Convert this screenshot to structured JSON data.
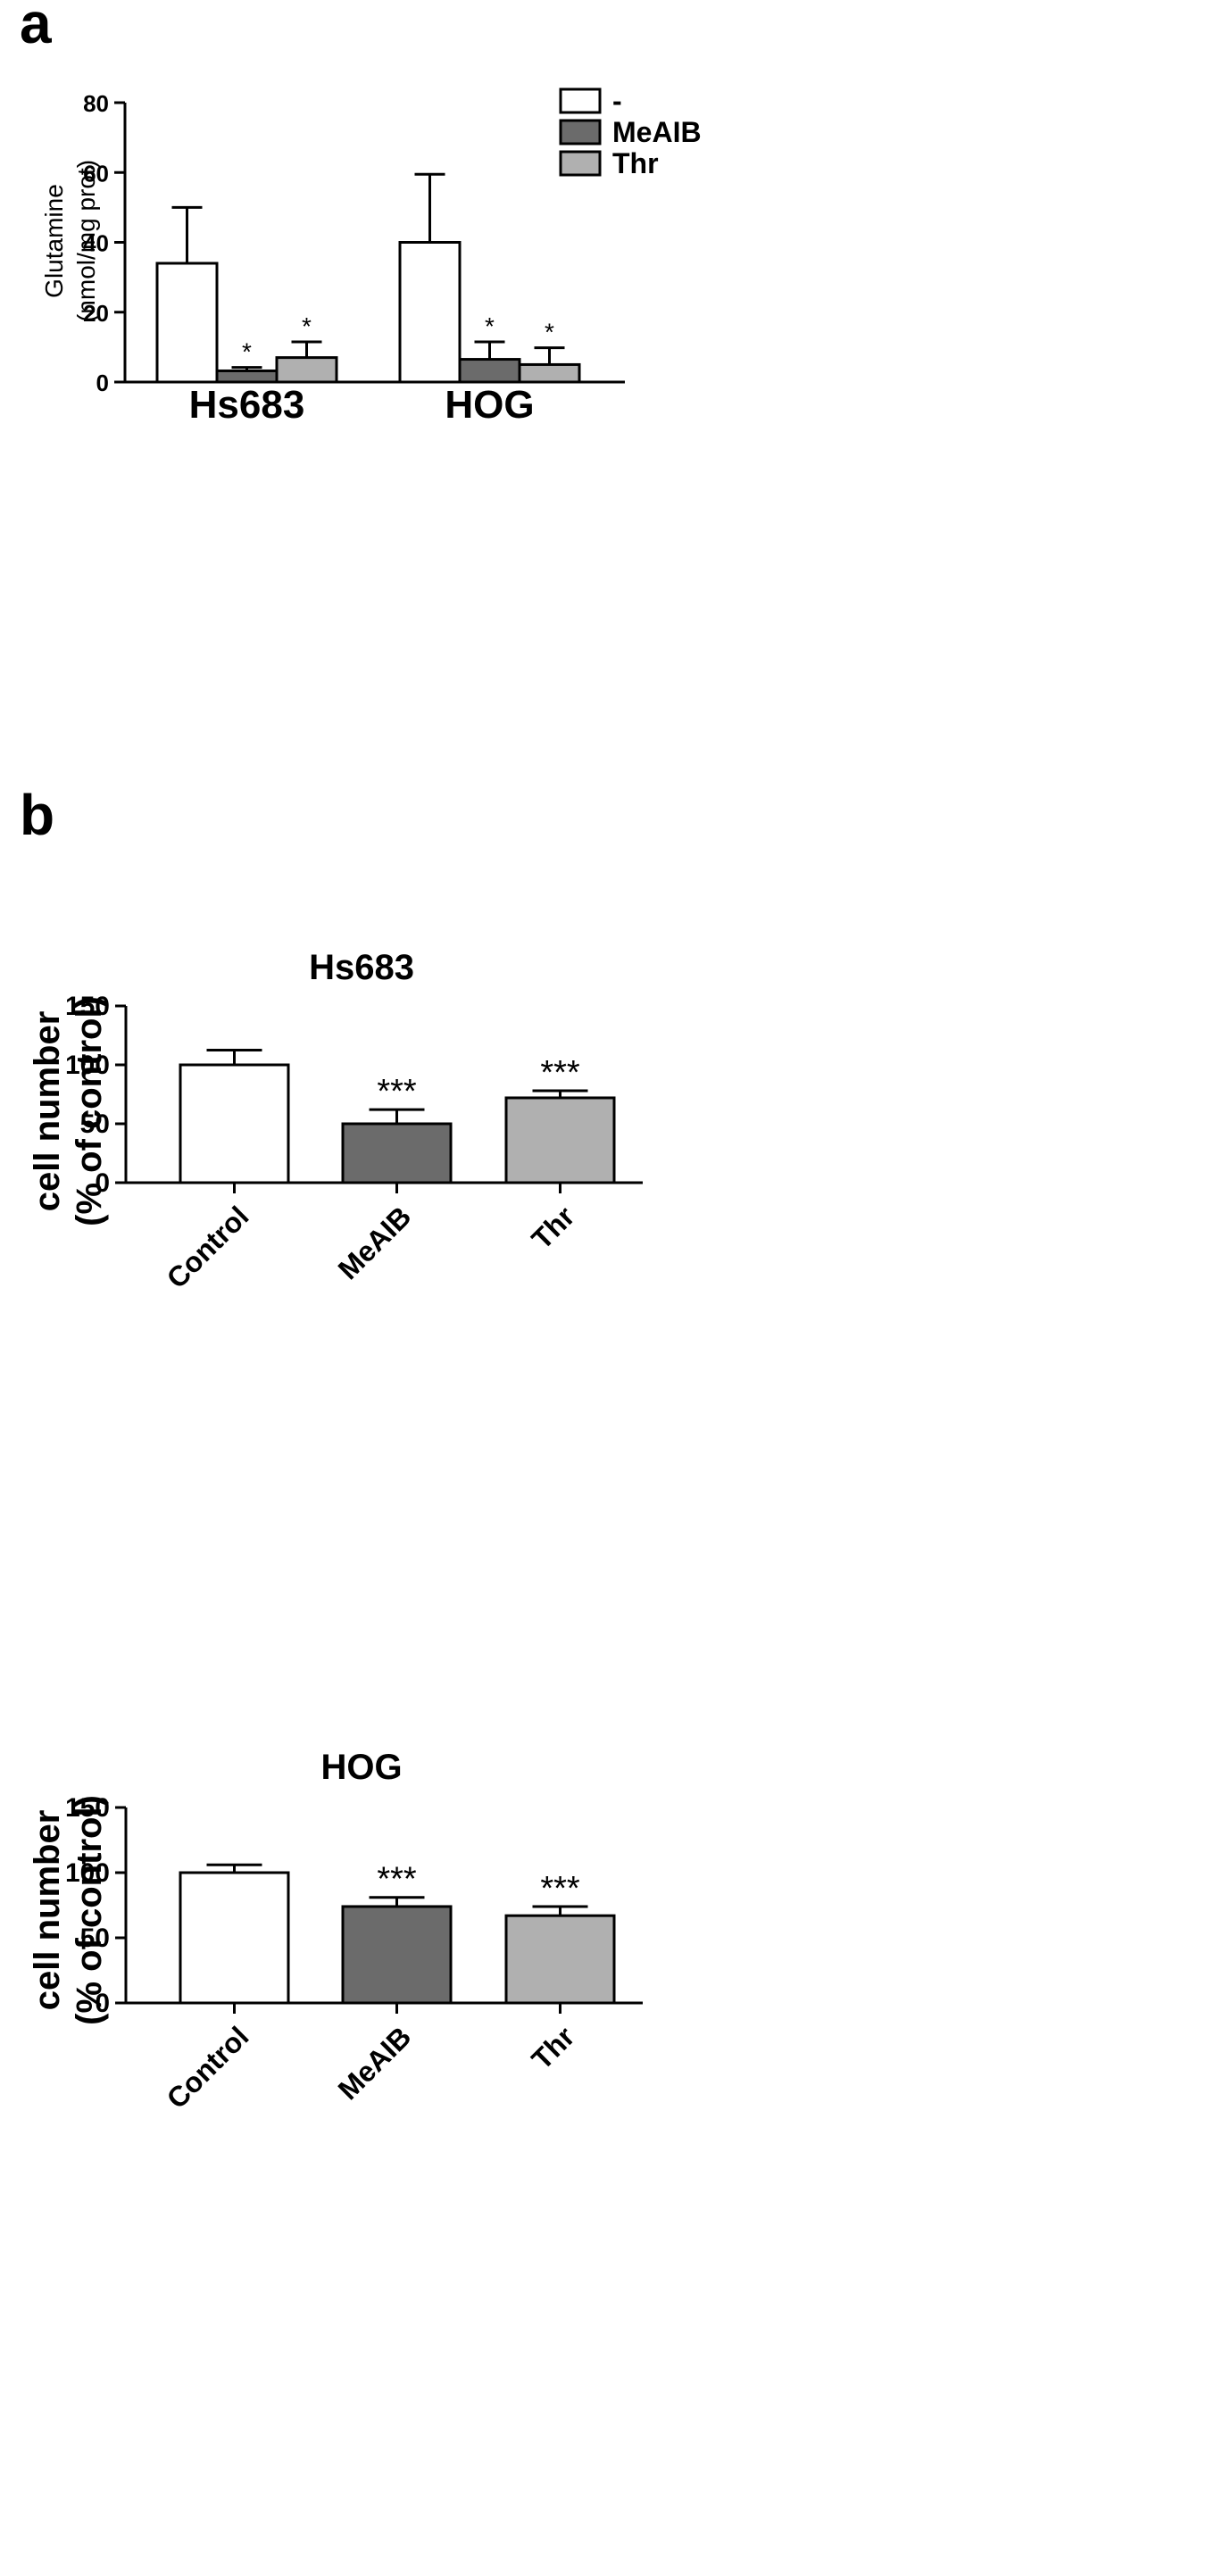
{
  "panel_labels": [
    "a",
    "b"
  ],
  "colors": {
    "none": "#ffffff",
    "meaib": "#6b6b6b",
    "thr": "#b0b0b0",
    "stroke": "#000000"
  },
  "chart_data": [
    {
      "type": "bar",
      "panel": "a",
      "title": "",
      "ylabel": "Glutamine",
      "ylabel_line2": "(nmol/mg prot)",
      "xlabel": "",
      "ylim": [
        0,
        80
      ],
      "yticks": [
        0,
        20,
        40,
        60,
        80
      ],
      "categories": [
        "Hs683",
        "HOG"
      ],
      "legend_position": "top-right",
      "series": [
        {
          "name": "-",
          "values": [
            34,
            40
          ],
          "errors": [
            16,
            19.5
          ],
          "sig": [
            "",
            ""
          ],
          "color": "#ffffff"
        },
        {
          "name": "MeAIB",
          "values": [
            3.2,
            6.5
          ],
          "errors": [
            1.0,
            5.0
          ],
          "sig": [
            "*",
            "*"
          ],
          "color": "#6b6b6b"
        },
        {
          "name": "Thr",
          "values": [
            7,
            5
          ],
          "errors": [
            4.5,
            4.8
          ],
          "sig": [
            "*",
            "*"
          ],
          "color": "#b0b0b0"
        }
      ]
    },
    {
      "type": "bar",
      "panel": "b",
      "title": "Hs683",
      "ylabel": "cell number",
      "ylabel_line2": "(% of control)",
      "xlabel": "",
      "ylim": [
        0,
        150
      ],
      "yticks": [
        0,
        50,
        100,
        150
      ],
      "categories": [
        "Control",
        "MeAIB",
        "Thr"
      ],
      "values": [
        100,
        50,
        72
      ],
      "errors": [
        12.5,
        12,
        6
      ],
      "sig": [
        "",
        "***",
        "***"
      ],
      "colors": [
        "#ffffff",
        "#6b6b6b",
        "#b0b0b0"
      ]
    },
    {
      "type": "bar",
      "panel": "b",
      "title": "HOG",
      "ylabel": "cell number",
      "ylabel_line2": "(% of control)",
      "xlabel": "",
      "ylim": [
        0,
        150
      ],
      "yticks": [
        0,
        50,
        100,
        150
      ],
      "categories": [
        "Control",
        "MeAIB",
        "Thr"
      ],
      "values": [
        100,
        74,
        67
      ],
      "errors": [
        6,
        7,
        7
      ],
      "sig": [
        "",
        "***",
        "***"
      ],
      "colors": [
        "#ffffff",
        "#6b6b6b",
        "#b0b0b0"
      ]
    }
  ]
}
